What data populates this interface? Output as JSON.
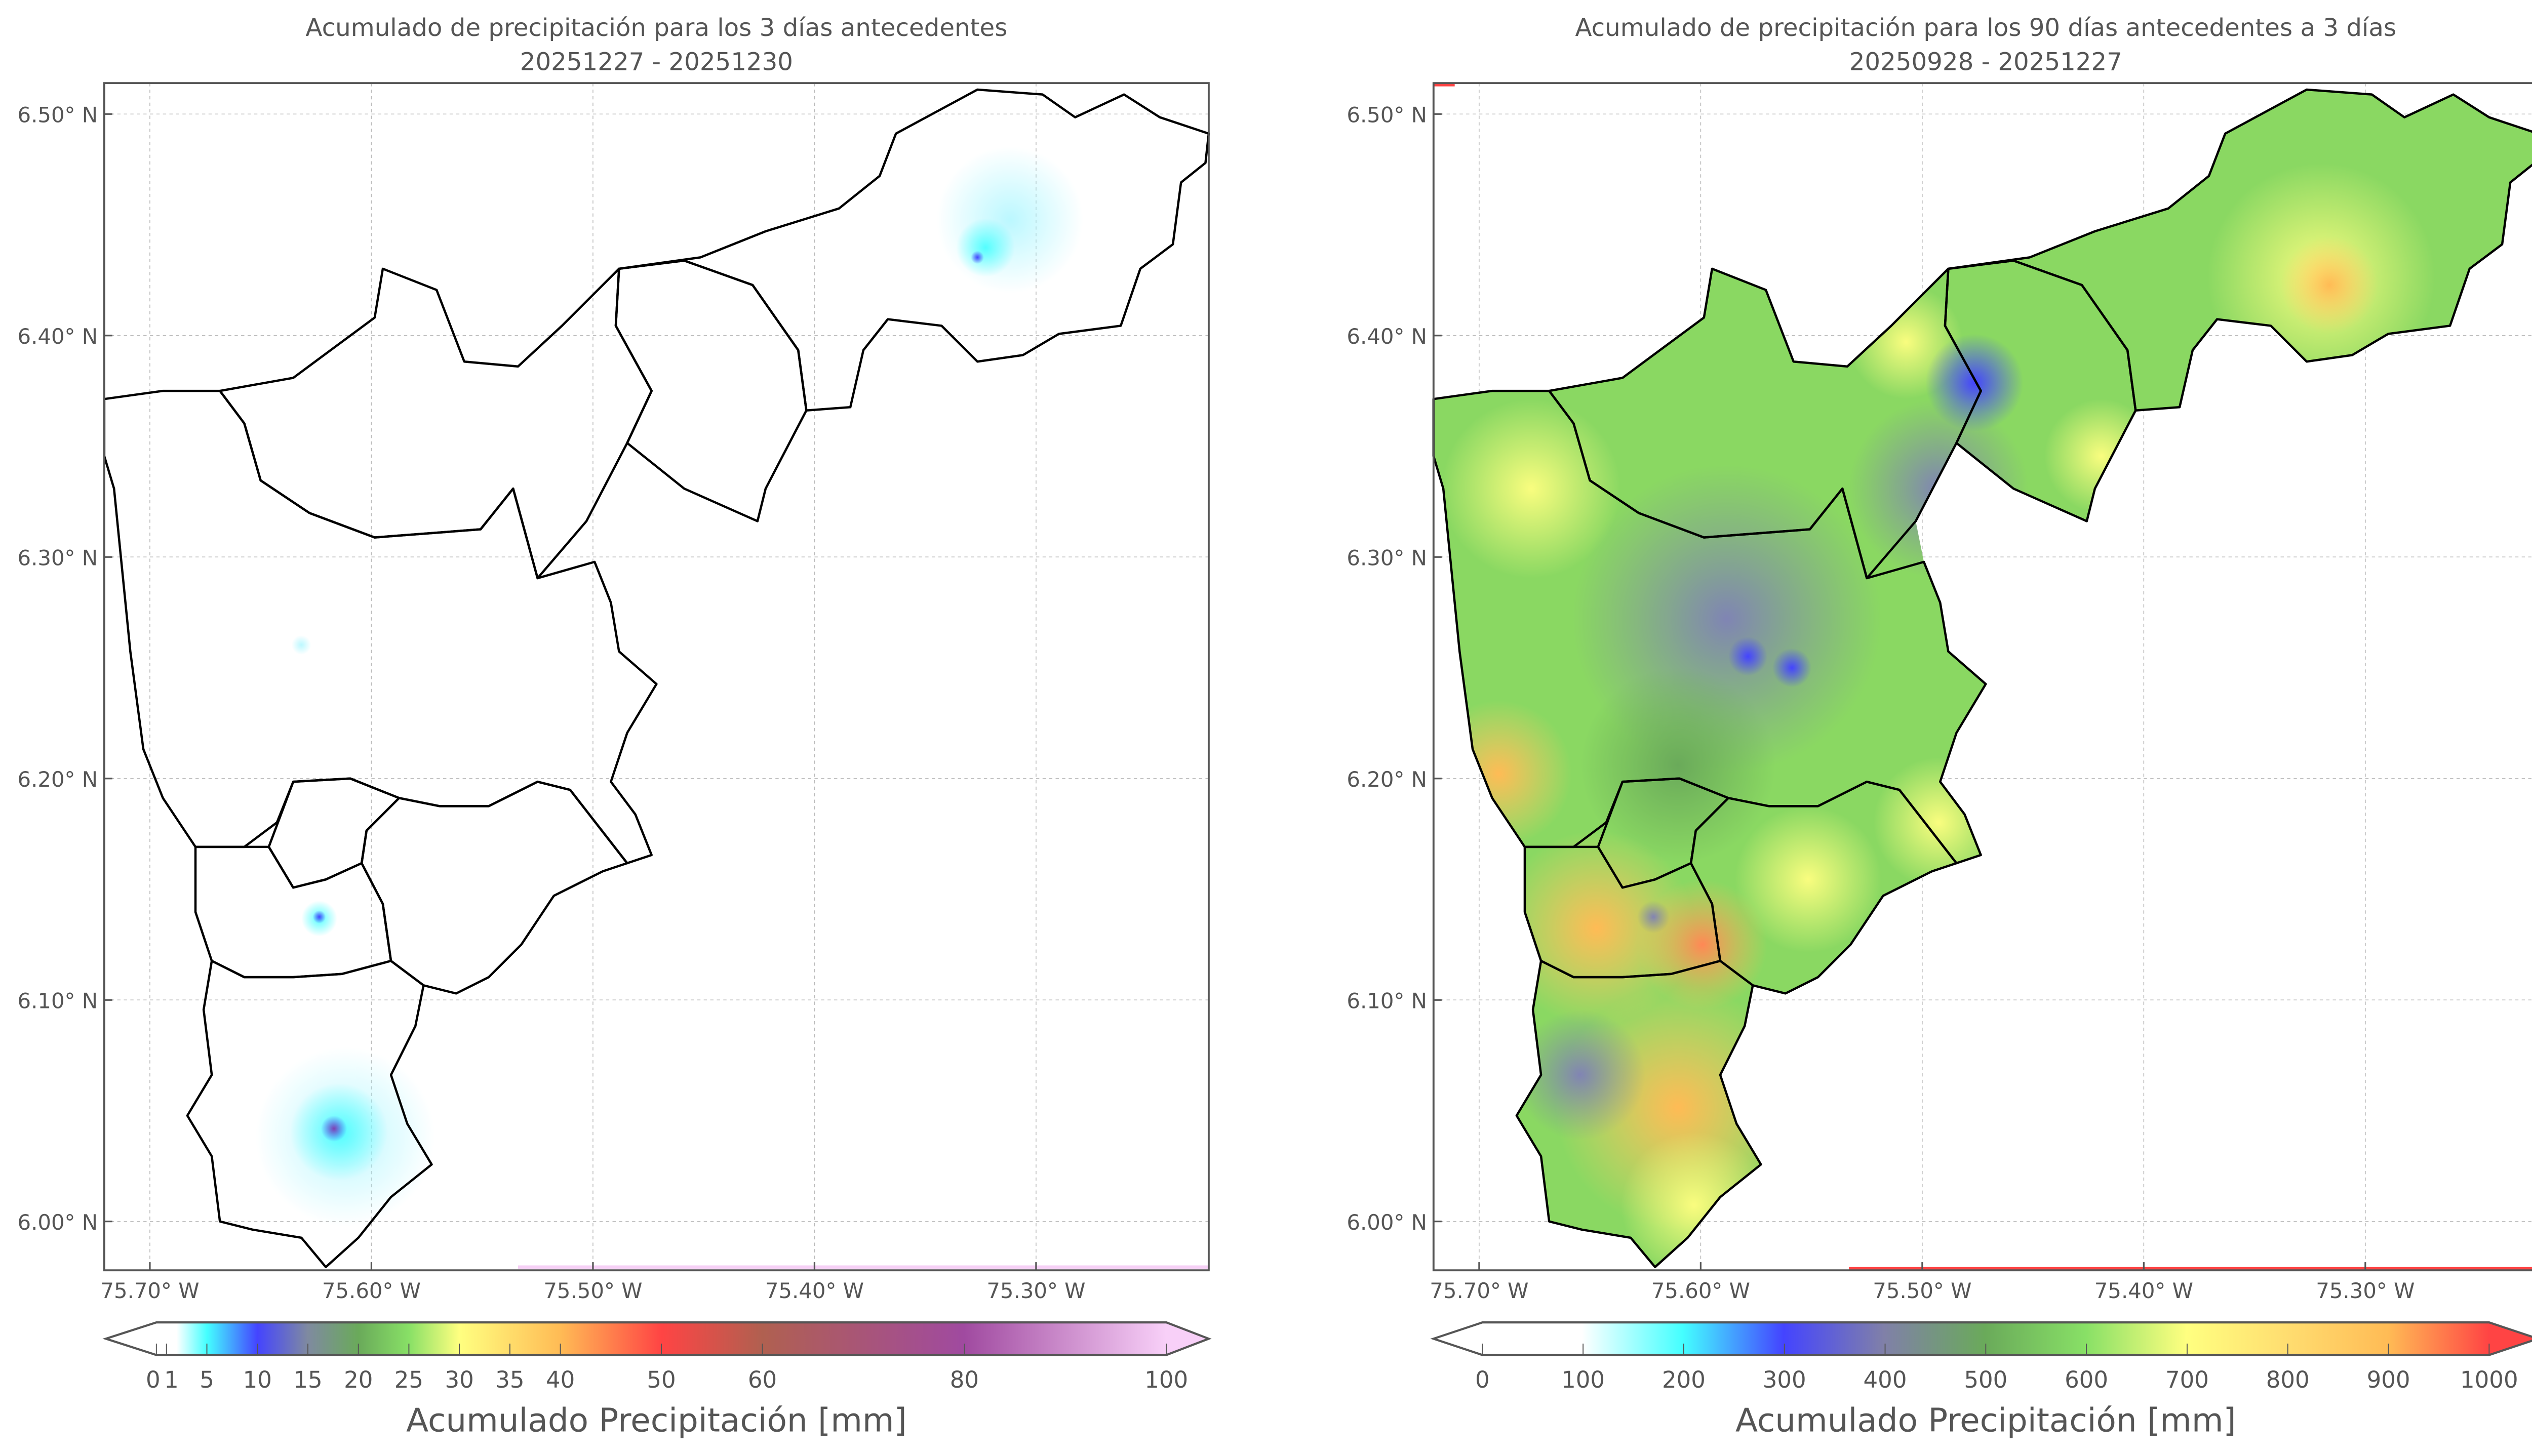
{
  "chart_data": [
    {
      "type": "heatmap",
      "title": "Acumulado de precipitación para los 3 días antecedentes",
      "subtitle": "20251227 - 20251230",
      "x_ticks": [
        "75.70° W",
        "75.60° W",
        "75.50° W",
        "75.40° W",
        "75.30° W"
      ],
      "x_tick_values": [
        -75.7,
        -75.6,
        -75.5,
        -75.4,
        -75.3
      ],
      "y_ticks": [
        "6.50° N",
        "6.40° N",
        "6.30° N",
        "6.20° N",
        "6.10° N",
        "6.00° N"
      ],
      "y_tick_values": [
        6.5,
        6.4,
        6.3,
        6.2,
        6.1,
        6.0
      ],
      "colorbar": {
        "label": "Acumulado Precipitación [mm]",
        "range": [
          0,
          100
        ],
        "ticks": [
          0,
          1,
          5,
          10,
          15,
          20,
          25,
          30,
          35,
          40,
          50,
          60,
          80,
          100
        ],
        "tick_labels": [
          "0",
          "1",
          "5",
          "10",
          "15",
          "20",
          "25",
          "30",
          "35",
          "40",
          "50",
          "60",
          "80",
          "100"
        ],
        "stops": [
          [
            0,
            "#ffffff"
          ],
          [
            2,
            "#ffffff"
          ],
          [
            5,
            "#44ffff"
          ],
          [
            10,
            "#4444ff"
          ],
          [
            15,
            "#7f8aa0"
          ],
          [
            20,
            "#6aaa5a"
          ],
          [
            25,
            "#88e066"
          ],
          [
            30,
            "#ffff80"
          ],
          [
            40,
            "#ffbb55"
          ],
          [
            50,
            "#ff4444"
          ],
          [
            60,
            "#b06050"
          ],
          [
            80,
            "#a04aa0"
          ],
          [
            100,
            "#f8d0f8"
          ]
        ]
      },
      "hotspots_mm": [
        {
          "lon": -75.325,
          "lat": 6.435,
          "value": 10
        },
        {
          "lon": -75.626,
          "lat": 6.137,
          "value": 8
        },
        {
          "lon": -75.617,
          "lat": 6.041,
          "value": 15
        }
      ]
    },
    {
      "type": "heatmap",
      "title": "Acumulado de precipitación para los 90 días antecedentes a 3 días",
      "subtitle": "20250928 - 20251227",
      "x_ticks": [
        "75.70° W",
        "75.60° W",
        "75.50° W",
        "75.40° W",
        "75.30° W"
      ],
      "x_tick_values": [
        -75.7,
        -75.6,
        -75.5,
        -75.4,
        -75.3
      ],
      "y_ticks": [
        "6.50° N",
        "6.40° N",
        "6.30° N",
        "6.20° N",
        "6.10° N",
        "6.00° N"
      ],
      "y_tick_values": [
        6.5,
        6.4,
        6.3,
        6.2,
        6.1,
        6.0
      ],
      "colorbar": {
        "label": "Acumulado Precipitación [mm]",
        "range": [
          0,
          1000
        ],
        "ticks": [
          0,
          100,
          200,
          300,
          400,
          500,
          600,
          700,
          800,
          900,
          1000
        ],
        "tick_labels": [
          "0",
          "100",
          "200",
          "300",
          "400",
          "500",
          "600",
          "700",
          "800",
          "900",
          "1000"
        ],
        "stops": [
          [
            0,
            "#ffffff"
          ],
          [
            100,
            "#ffffff"
          ],
          [
            200,
            "#44ffff"
          ],
          [
            300,
            "#4444ff"
          ],
          [
            400,
            "#8080a8"
          ],
          [
            500,
            "#6aaa5a"
          ],
          [
            600,
            "#88e066"
          ],
          [
            700,
            "#ffff80"
          ],
          [
            800,
            "#ffdd70"
          ],
          [
            900,
            "#ffbb55"
          ],
          [
            1000,
            "#ff4444"
          ]
        ]
      },
      "hotspots_mm": [
        {
          "lon": -75.485,
          "lat": 6.377,
          "value": 300
        },
        {
          "lon": -75.577,
          "lat": 6.255,
          "value": 320
        },
        {
          "lon": -75.32,
          "lat": 6.42,
          "value": 780
        },
        {
          "lon": -75.6,
          "lat": 6.12,
          "value": 850
        },
        {
          "lon": -75.68,
          "lat": 6.2,
          "value": 800
        }
      ]
    }
  ]
}
